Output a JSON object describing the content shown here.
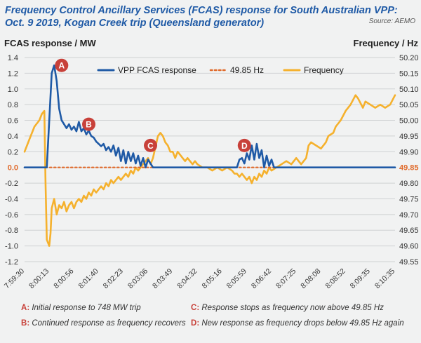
{
  "title": "Frequency Control Ancillary Services (FCAS) response for South Australian VPP: Oct. 9 2019, Kogan Creek trip (Queensland generator)",
  "source": "Source: AEMO",
  "colors": {
    "fcas": "#1f5aa6",
    "threshold": "#e06a2b",
    "frequency": "#f5b12d",
    "marker": "#c8413a",
    "grid": "#cfd1d3",
    "axis_text": "#333333"
  },
  "chart_data": {
    "type": "line",
    "left_axis_label": "FCAS response / MW",
    "right_axis_label": "Frequency / Hz",
    "left_ylim": [
      -1.2,
      1.4
    ],
    "right_ylim": [
      49.55,
      50.2
    ],
    "left_ticks": [
      "1.4",
      "1.2",
      "1.0",
      "0.8",
      "0.6",
      "0.4",
      "0.2",
      "0.0",
      "-0.2",
      "-0.4",
      "-0.6",
      "-0.8",
      "-1.0",
      "-1.2"
    ],
    "right_ticks": [
      "50.20",
      "50.15",
      "50.10",
      "50.05",
      "50.00",
      "49.95",
      "49.90",
      "49.85",
      "49.80",
      "49.75",
      "49.70",
      "49.65",
      "49.60",
      "49.55"
    ],
    "x_ticks": [
      "7:59:30",
      "8:00:13",
      "8:00:56",
      "8:01:40",
      "8:02:23",
      "8:03:06",
      "8:03:49",
      "8:04:32",
      "8:05:16",
      "8:05:59",
      "8:06:42",
      "8:07:25",
      "8:08:08",
      "8:08:52",
      "8:09:35",
      "8:10:35"
    ],
    "legend": [
      "VPP FCAS response",
      "49.85 Hz",
      "Frequency"
    ],
    "legend_position": "top",
    "grid": "horizontal",
    "series": [
      {
        "name": "VPP FCAS response",
        "axis": "left",
        "points": [
          [
            0.0,
            0.0
          ],
          [
            0.9,
            0.0
          ],
          [
            1.0,
            0.6
          ],
          [
            1.1,
            1.2
          ],
          [
            1.2,
            1.3
          ],
          [
            1.3,
            1.1
          ],
          [
            1.4,
            0.75
          ],
          [
            1.5,
            0.6
          ],
          [
            1.6,
            0.55
          ],
          [
            1.7,
            0.5
          ],
          [
            1.8,
            0.55
          ],
          [
            1.9,
            0.48
          ],
          [
            2.0,
            0.52
          ],
          [
            2.1,
            0.46
          ],
          [
            2.2,
            0.58
          ],
          [
            2.3,
            0.46
          ],
          [
            2.4,
            0.5
          ],
          [
            2.5,
            0.42
          ],
          [
            2.6,
            0.47
          ],
          [
            2.7,
            0.4
          ],
          [
            2.8,
            0.38
          ],
          [
            2.9,
            0.33
          ],
          [
            3.0,
            0.3
          ],
          [
            3.1,
            0.27
          ],
          [
            3.2,
            0.3
          ],
          [
            3.3,
            0.22
          ],
          [
            3.4,
            0.26
          ],
          [
            3.5,
            0.2
          ],
          [
            3.6,
            0.28
          ],
          [
            3.7,
            0.15
          ],
          [
            3.8,
            0.25
          ],
          [
            3.9,
            0.08
          ],
          [
            4.0,
            0.22
          ],
          [
            4.1,
            0.05
          ],
          [
            4.2,
            0.2
          ],
          [
            4.3,
            0.08
          ],
          [
            4.4,
            0.18
          ],
          [
            4.5,
            0.05
          ],
          [
            4.6,
            0.15
          ],
          [
            4.7,
            0.02
          ],
          [
            4.8,
            0.12
          ],
          [
            4.9,
            0.0
          ],
          [
            5.0,
            0.1
          ],
          [
            5.1,
            0.05
          ],
          [
            5.2,
            0.0
          ],
          [
            8.6,
            0.0
          ],
          [
            8.7,
            0.1
          ],
          [
            8.8,
            0.12
          ],
          [
            8.9,
            0.05
          ],
          [
            9.0,
            0.18
          ],
          [
            9.1,
            0.1
          ],
          [
            9.2,
            0.28
          ],
          [
            9.3,
            0.1
          ],
          [
            9.4,
            0.3
          ],
          [
            9.5,
            0.12
          ],
          [
            9.6,
            0.22
          ],
          [
            9.7,
            0.0
          ],
          [
            9.8,
            0.15
          ],
          [
            9.9,
            0.02
          ],
          [
            10.0,
            0.1
          ],
          [
            10.1,
            0.0
          ],
          [
            15.0,
            0.0
          ]
        ]
      },
      {
        "name": "49.85 Hz",
        "axis": "right",
        "points": [
          [
            0.0,
            49.85
          ],
          [
            15.0,
            49.85
          ]
        ]
      },
      {
        "name": "Frequency",
        "axis": "right",
        "points": [
          [
            0.0,
            49.9
          ],
          [
            0.1,
            49.92
          ],
          [
            0.2,
            49.94
          ],
          [
            0.4,
            49.98
          ],
          [
            0.6,
            50.0
          ],
          [
            0.7,
            50.02
          ],
          [
            0.8,
            50.03
          ],
          [
            0.85,
            49.8
          ],
          [
            0.9,
            49.62
          ],
          [
            1.0,
            49.6
          ],
          [
            1.05,
            49.64
          ],
          [
            1.1,
            49.72
          ],
          [
            1.2,
            49.75
          ],
          [
            1.3,
            49.7
          ],
          [
            1.4,
            49.73
          ],
          [
            1.5,
            49.72
          ],
          [
            1.6,
            49.74
          ],
          [
            1.7,
            49.71
          ],
          [
            1.8,
            49.73
          ],
          [
            1.9,
            49.74
          ],
          [
            2.0,
            49.72
          ],
          [
            2.1,
            49.74
          ],
          [
            2.2,
            49.75
          ],
          [
            2.3,
            49.74
          ],
          [
            2.4,
            49.76
          ],
          [
            2.5,
            49.75
          ],
          [
            2.6,
            49.77
          ],
          [
            2.7,
            49.76
          ],
          [
            2.8,
            49.78
          ],
          [
            2.9,
            49.77
          ],
          [
            3.0,
            49.78
          ],
          [
            3.1,
            49.79
          ],
          [
            3.2,
            49.78
          ],
          [
            3.3,
            49.8
          ],
          [
            3.4,
            49.79
          ],
          [
            3.5,
            49.81
          ],
          [
            3.6,
            49.8
          ],
          [
            3.7,
            49.81
          ],
          [
            3.8,
            49.82
          ],
          [
            3.9,
            49.81
          ],
          [
            4.0,
            49.82
          ],
          [
            4.1,
            49.83
          ],
          [
            4.2,
            49.82
          ],
          [
            4.3,
            49.84
          ],
          [
            4.4,
            49.83
          ],
          [
            4.5,
            49.85
          ],
          [
            4.6,
            49.84
          ],
          [
            4.7,
            49.85
          ],
          [
            4.8,
            49.86
          ],
          [
            4.9,
            49.87
          ],
          [
            5.0,
            49.88
          ],
          [
            5.1,
            49.86
          ],
          [
            5.2,
            49.88
          ],
          [
            5.4,
            49.95
          ],
          [
            5.5,
            49.96
          ],
          [
            5.6,
            49.95
          ],
          [
            5.7,
            49.93
          ],
          [
            5.8,
            49.92
          ],
          [
            5.9,
            49.9
          ],
          [
            6.0,
            49.9
          ],
          [
            6.1,
            49.88
          ],
          [
            6.2,
            49.9
          ],
          [
            6.3,
            49.89
          ],
          [
            6.4,
            49.88
          ],
          [
            6.5,
            49.87
          ],
          [
            6.6,
            49.88
          ],
          [
            6.7,
            49.87
          ],
          [
            6.8,
            49.86
          ],
          [
            6.9,
            49.87
          ],
          [
            7.0,
            49.86
          ],
          [
            7.2,
            49.85
          ],
          [
            7.4,
            49.85
          ],
          [
            7.6,
            49.84
          ],
          [
            7.8,
            49.85
          ],
          [
            8.0,
            49.84
          ],
          [
            8.2,
            49.85
          ],
          [
            8.4,
            49.84
          ],
          [
            8.5,
            49.83
          ],
          [
            8.6,
            49.83
          ],
          [
            8.7,
            49.82
          ],
          [
            8.8,
            49.83
          ],
          [
            8.9,
            49.82
          ],
          [
            9.0,
            49.81
          ],
          [
            9.1,
            49.82
          ],
          [
            9.2,
            49.8
          ],
          [
            9.3,
            49.82
          ],
          [
            9.4,
            49.81
          ],
          [
            9.5,
            49.83
          ],
          [
            9.6,
            49.82
          ],
          [
            9.7,
            49.84
          ],
          [
            9.8,
            49.83
          ],
          [
            9.9,
            49.85
          ],
          [
            10.0,
            49.84
          ],
          [
            10.2,
            49.85
          ],
          [
            10.4,
            49.86
          ],
          [
            10.6,
            49.87
          ],
          [
            10.8,
            49.86
          ],
          [
            11.0,
            49.88
          ],
          [
            11.2,
            49.86
          ],
          [
            11.4,
            49.88
          ],
          [
            11.5,
            49.92
          ],
          [
            11.6,
            49.93
          ],
          [
            11.8,
            49.92
          ],
          [
            12.0,
            49.91
          ],
          [
            12.2,
            49.93
          ],
          [
            12.3,
            49.95
          ],
          [
            12.5,
            49.96
          ],
          [
            12.6,
            49.98
          ],
          [
            12.8,
            50.0
          ],
          [
            13.0,
            50.03
          ],
          [
            13.2,
            50.05
          ],
          [
            13.4,
            50.08
          ],
          [
            13.5,
            50.07
          ],
          [
            13.7,
            50.04
          ],
          [
            13.8,
            50.06
          ],
          [
            14.0,
            50.05
          ],
          [
            14.2,
            50.04
          ],
          [
            14.4,
            50.05
          ],
          [
            14.6,
            50.04
          ],
          [
            14.8,
            50.05
          ],
          [
            15.0,
            50.08
          ]
        ]
      }
    ],
    "markers": [
      {
        "key": "A",
        "x": 1.5,
        "value": 1.3
      },
      {
        "key": "B",
        "x": 2.6,
        "value": 0.55
      },
      {
        "key": "C",
        "x": 5.1,
        "value": 0.28
      },
      {
        "key": "D",
        "x": 8.9,
        "value": 0.28
      }
    ]
  },
  "annotations": [
    {
      "key": "A",
      "sep": ": ",
      "text": "Initial response to 748 MW trip"
    },
    {
      "key": "B",
      "sep": ": ",
      "text": "Continued response as frequency recovers"
    },
    {
      "key": "C",
      "sep": ": ",
      "text": "Response stops as frequency now above 49.85 Hz"
    },
    {
      "key": "D",
      "sep": ": ",
      "text": "New response as frequency drops below 49.85 Hz again"
    }
  ]
}
